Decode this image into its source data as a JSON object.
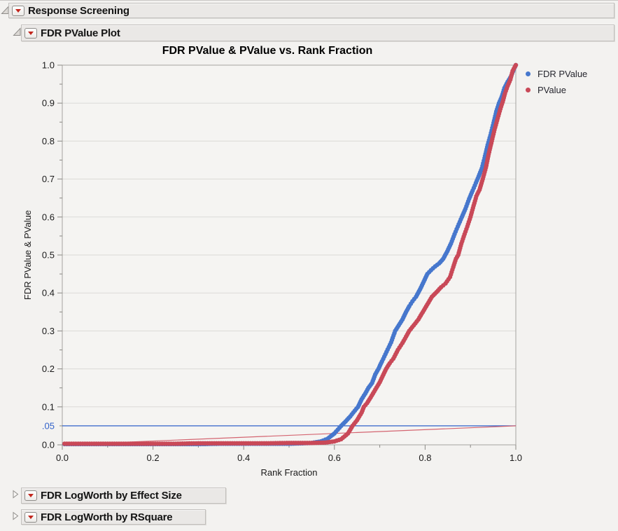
{
  "outline": {
    "root": {
      "title": "Response Screening",
      "state": "expanded"
    },
    "plot_node": {
      "title": "FDR PValue Plot",
      "state": "expanded"
    },
    "collapsed_nodes": [
      {
        "title": "FDR LogWorth by Effect Size",
        "state": "collapsed"
      },
      {
        "title": "FDR LogWorth by RSquare",
        "state": "collapsed"
      }
    ]
  },
  "chart_data": {
    "type": "scatter",
    "title": "FDR PValue & PValue vs. Rank Fraction",
    "xlabel": "Rank Fraction",
    "ylabel": "FDR PValue & PValue",
    "grid": "horizontal",
    "x_axis": {
      "label": "Rank Fraction",
      "min": 0.0,
      "max": 1.0,
      "minor_every": 0.1,
      "major_ticks": [
        {
          "v": 0.0,
          "t": "0.0"
        },
        {
          "v": 0.2,
          "t": "0.2"
        },
        {
          "v": 0.4,
          "t": "0.4"
        },
        {
          "v": 0.6,
          "t": "0.6"
        },
        {
          "v": 0.8,
          "t": "0.8"
        },
        {
          "v": 1.0,
          "t": "1.0"
        }
      ]
    },
    "y_axis": {
      "label": "FDR PValue & PValue",
      "min": 0.0,
      "max": 1.0,
      "minor_every": 0.05,
      "major_ticks": [
        {
          "v": 0.0,
          "t": "0.0"
        },
        {
          "v": 0.1,
          "t": "0.1"
        },
        {
          "v": 0.2,
          "t": "0.2"
        },
        {
          "v": 0.3,
          "t": "0.3"
        },
        {
          "v": 0.4,
          "t": "0.4"
        },
        {
          "v": 0.5,
          "t": "0.5"
        },
        {
          "v": 0.6,
          "t": "0.6"
        },
        {
          "v": 0.7,
          "t": "0.7"
        },
        {
          "v": 0.8,
          "t": "0.8"
        },
        {
          "v": 0.9,
          "t": "0.9"
        },
        {
          "v": 1.0,
          "t": "1.0"
        }
      ],
      "extra_tick": {
        "v": 0.05,
        "t": ".05",
        "color": "#3061c9"
      }
    },
    "legend": {
      "position": "right",
      "entries": [
        {
          "label": "FDR PValue",
          "color": "#4677cd"
        },
        {
          "label": "PValue",
          "color": "#c94958"
        }
      ]
    },
    "reference_lines": [
      {
        "name": "fdr-threshold-line",
        "type": "horizontal",
        "y": 0.05,
        "color": "#3061c9"
      },
      {
        "name": "pvalue-reference-line",
        "type": "segment",
        "from": [
          0.0,
          0.0
        ],
        "to": [
          1.0,
          0.05
        ],
        "color": "#d46571"
      }
    ],
    "series": [
      {
        "name": "FDR PValue",
        "color": "#4677cd",
        "points": [
          [
            0.005,
            0.002
          ],
          [
            0.05,
            0.002
          ],
          [
            0.1,
            0.002
          ],
          [
            0.15,
            0.002
          ],
          [
            0.2,
            0.002
          ],
          [
            0.25,
            0.002
          ],
          [
            0.3,
            0.002
          ],
          [
            0.35,
            0.003
          ],
          [
            0.4,
            0.003
          ],
          [
            0.45,
            0.003
          ],
          [
            0.5,
            0.003
          ],
          [
            0.53,
            0.004
          ],
          [
            0.55,
            0.005
          ],
          [
            0.57,
            0.009
          ],
          [
            0.585,
            0.016
          ],
          [
            0.6,
            0.03
          ],
          [
            0.615,
            0.05
          ],
          [
            0.625,
            0.062
          ],
          [
            0.635,
            0.075
          ],
          [
            0.645,
            0.09
          ],
          [
            0.652,
            0.1
          ],
          [
            0.66,
            0.12
          ],
          [
            0.668,
            0.135
          ],
          [
            0.675,
            0.15
          ],
          [
            0.683,
            0.163
          ],
          [
            0.69,
            0.185
          ],
          [
            0.697,
            0.2
          ],
          [
            0.705,
            0.22
          ],
          [
            0.715,
            0.245
          ],
          [
            0.725,
            0.27
          ],
          [
            0.734,
            0.3
          ],
          [
            0.742,
            0.315
          ],
          [
            0.75,
            0.33
          ],
          [
            0.758,
            0.35
          ],
          [
            0.765,
            0.365
          ],
          [
            0.772,
            0.378
          ],
          [
            0.78,
            0.39
          ],
          [
            0.789,
            0.41
          ],
          [
            0.797,
            0.43
          ],
          [
            0.805,
            0.45
          ],
          [
            0.813,
            0.46
          ],
          [
            0.822,
            0.47
          ],
          [
            0.831,
            0.478
          ],
          [
            0.84,
            0.49
          ],
          [
            0.849,
            0.51
          ],
          [
            0.857,
            0.53
          ],
          [
            0.865,
            0.555
          ],
          [
            0.872,
            0.575
          ],
          [
            0.881,
            0.6
          ],
          [
            0.889,
            0.622
          ],
          [
            0.897,
            0.648
          ],
          [
            0.905,
            0.67
          ],
          [
            0.912,
            0.69
          ],
          [
            0.918,
            0.707
          ],
          [
            0.925,
            0.728
          ],
          [
            0.931,
            0.755
          ],
          [
            0.938,
            0.79
          ],
          [
            0.944,
            0.815
          ],
          [
            0.951,
            0.848
          ],
          [
            0.957,
            0.878
          ],
          [
            0.963,
            0.9
          ],
          [
            0.969,
            0.917
          ],
          [
            0.975,
            0.94
          ],
          [
            0.982,
            0.956
          ],
          [
            0.99,
            0.972
          ],
          [
            0.996,
            0.99
          ],
          [
            1.0,
            1.0
          ]
        ]
      },
      {
        "name": "PValue",
        "color": "#c94958",
        "points": [
          [
            0.005,
            0.003
          ],
          [
            0.05,
            0.003
          ],
          [
            0.1,
            0.003
          ],
          [
            0.15,
            0.003
          ],
          [
            0.2,
            0.003
          ],
          [
            0.25,
            0.003
          ],
          [
            0.3,
            0.004
          ],
          [
            0.35,
            0.004
          ],
          [
            0.4,
            0.004
          ],
          [
            0.45,
            0.004
          ],
          [
            0.5,
            0.005
          ],
          [
            0.55,
            0.005
          ],
          [
            0.58,
            0.006
          ],
          [
            0.6,
            0.009
          ],
          [
            0.615,
            0.015
          ],
          [
            0.63,
            0.03
          ],
          [
            0.64,
            0.05
          ],
          [
            0.65,
            0.065
          ],
          [
            0.66,
            0.085
          ],
          [
            0.665,
            0.1
          ],
          [
            0.672,
            0.11
          ],
          [
            0.68,
            0.125
          ],
          [
            0.69,
            0.145
          ],
          [
            0.7,
            0.165
          ],
          [
            0.708,
            0.185
          ],
          [
            0.714,
            0.2
          ],
          [
            0.722,
            0.215
          ],
          [
            0.73,
            0.227
          ],
          [
            0.74,
            0.25
          ],
          [
            0.75,
            0.268
          ],
          [
            0.758,
            0.285
          ],
          [
            0.765,
            0.3
          ],
          [
            0.775,
            0.315
          ],
          [
            0.785,
            0.33
          ],
          [
            0.795,
            0.35
          ],
          [
            0.805,
            0.37
          ],
          [
            0.815,
            0.39
          ],
          [
            0.825,
            0.402
          ],
          [
            0.835,
            0.415
          ],
          [
            0.845,
            0.425
          ],
          [
            0.855,
            0.442
          ],
          [
            0.862,
            0.468
          ],
          [
            0.868,
            0.49
          ],
          [
            0.873,
            0.5
          ],
          [
            0.88,
            0.53
          ],
          [
            0.887,
            0.555
          ],
          [
            0.893,
            0.575
          ],
          [
            0.9,
            0.6
          ],
          [
            0.907,
            0.63
          ],
          [
            0.913,
            0.655
          ],
          [
            0.92,
            0.672
          ],
          [
            0.927,
            0.7
          ],
          [
            0.934,
            0.73
          ],
          [
            0.94,
            0.765
          ],
          [
            0.947,
            0.8
          ],
          [
            0.953,
            0.83
          ],
          [
            0.96,
            0.86
          ],
          [
            0.966,
            0.885
          ],
          [
            0.971,
            0.903
          ],
          [
            0.976,
            0.925
          ],
          [
            0.982,
            0.945
          ],
          [
            0.988,
            0.962
          ],
          [
            0.993,
            0.985
          ],
          [
            1.0,
            1.0
          ]
        ]
      }
    ]
  }
}
